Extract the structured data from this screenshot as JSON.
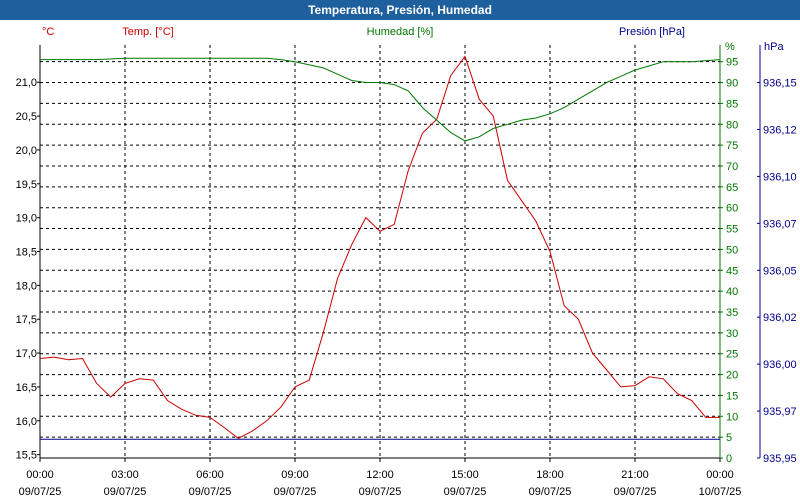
{
  "window": {
    "title": "Temperatura, Presión, Humedad"
  },
  "header": {
    "temp_label": "Temp. [°C]",
    "hum_label": "Humedad [%]",
    "pres_label": "Presión [hPa]",
    "temp_unit": "°C",
    "hum_unit": "%",
    "pres_unit": "hPa"
  },
  "colors": {
    "temp": "#cc0000",
    "hum": "#007700",
    "pres": "#00008b",
    "title_bar": "#1e5f9e"
  },
  "chart_data": {
    "type": "line",
    "title": "Temperatura, Presión, Humedad",
    "x_ticks": [
      {
        "time": "00:00",
        "date": "09/07/25"
      },
      {
        "time": "03:00",
        "date": "09/07/25"
      },
      {
        "time": "06:00",
        "date": "09/07/25"
      },
      {
        "time": "09:00",
        "date": "09/07/25"
      },
      {
        "time": "12:00",
        "date": "09/07/25"
      },
      {
        "time": "15:00",
        "date": "09/07/25"
      },
      {
        "time": "18:00",
        "date": "09/07/25"
      },
      {
        "time": "21:00",
        "date": "09/07/25"
      },
      {
        "time": "00:00",
        "date": "10/07/25"
      }
    ],
    "x_unit": "hours",
    "xlim": [
      0,
      24
    ],
    "temp_axis": {
      "label": "Temp. [°C]",
      "ylim": [
        15.45,
        21.55
      ],
      "ticks": [
        "15,5",
        "16,0",
        "16,5",
        "17,0",
        "17,5",
        "18,0",
        "18,5",
        "19,0",
        "19,5",
        "20,0",
        "20,5",
        "21,0"
      ],
      "tick_values": [
        15.5,
        16.0,
        16.5,
        17.0,
        17.5,
        18.0,
        18.5,
        19.0,
        19.5,
        20.0,
        20.5,
        21.0
      ]
    },
    "hum_axis": {
      "label": "Humedad [%]",
      "ylim": [
        0,
        99
      ],
      "ticks": [
        "0",
        "5",
        "10",
        "15",
        "20",
        "25",
        "30",
        "35",
        "40",
        "45",
        "50",
        "55",
        "60",
        "65",
        "70",
        "75",
        "80",
        "85",
        "90",
        "95"
      ],
      "tick_values": [
        0,
        5,
        10,
        15,
        20,
        25,
        30,
        35,
        40,
        45,
        50,
        55,
        60,
        65,
        70,
        75,
        80,
        85,
        90,
        95
      ]
    },
    "pres_axis": {
      "label": "Presión [hPa]",
      "ylim": [
        935.95,
        936.17
      ],
      "ticks": [
        "935,95",
        "935,97",
        "936,00",
        "936,02",
        "936,05",
        "936,07",
        "936,10",
        "936,12",
        "936,15"
      ],
      "tick_values": [
        935.95,
        935.975,
        936.0,
        936.025,
        936.05,
        936.075,
        936.1,
        936.125,
        936.15
      ]
    },
    "grid": true,
    "series": [
      {
        "name": "Temp. [°C]",
        "axis": "temp",
        "color": "#cc0000",
        "x": [
          0,
          0.5,
          1,
          1.5,
          2,
          2.5,
          3,
          3.5,
          4,
          4.5,
          5,
          5.5,
          6,
          6.5,
          7,
          7.5,
          8,
          8.5,
          9,
          9.5,
          10,
          10.5,
          11,
          11.5,
          12,
          12.5,
          13,
          13.5,
          14,
          14.5,
          15,
          15.5,
          16,
          16.5,
          17,
          17.5,
          18,
          18.5,
          19,
          19.5,
          20,
          20.5,
          21,
          21.5,
          22,
          22.5,
          23,
          23.5,
          24
        ],
        "y": [
          16.92,
          16.94,
          16.9,
          16.92,
          16.55,
          16.35,
          16.55,
          16.62,
          16.6,
          16.3,
          16.17,
          16.08,
          16.05,
          15.9,
          15.74,
          15.85,
          16.0,
          16.2,
          16.5,
          16.6,
          17.3,
          18.1,
          18.6,
          19.0,
          18.8,
          18.9,
          19.7,
          20.25,
          20.45,
          21.1,
          21.38,
          20.75,
          20.5,
          19.55,
          19.25,
          18.95,
          18.5,
          17.7,
          17.5,
          17.0,
          16.75,
          16.5,
          16.52,
          16.65,
          16.62,
          16.4,
          16.3,
          16.05,
          16.05
        ]
      },
      {
        "name": "Humedad [%]",
        "axis": "hum",
        "color": "#007700",
        "x": [
          0,
          1,
          2,
          3,
          4,
          5,
          6,
          7,
          8,
          8.5,
          9,
          10,
          10.5,
          11,
          11.5,
          12,
          12.5,
          13,
          13.5,
          14,
          14.5,
          15,
          15.5,
          16,
          16.5,
          17,
          17.5,
          18,
          18.5,
          19,
          19.5,
          20,
          20.5,
          21,
          21.5,
          22,
          23,
          24
        ],
        "y": [
          95.5,
          95.5,
          95.5,
          95.8,
          95.8,
          95.8,
          95.8,
          95.8,
          95.8,
          95.5,
          95.0,
          93.5,
          92.0,
          90.5,
          90.0,
          90.0,
          89.5,
          88.0,
          84.0,
          81.0,
          78.0,
          76.0,
          77.0,
          79.0,
          80.0,
          81.0,
          81.5,
          82.5,
          84.0,
          86.0,
          88.0,
          90.0,
          91.5,
          93.0,
          94.0,
          95.0,
          95.0,
          95.5
        ]
      },
      {
        "name": "Presión [hPa]",
        "axis": "pres",
        "color": "#00008b",
        "x": [
          0,
          24
        ],
        "y": [
          935.96,
          935.96
        ]
      }
    ]
  }
}
